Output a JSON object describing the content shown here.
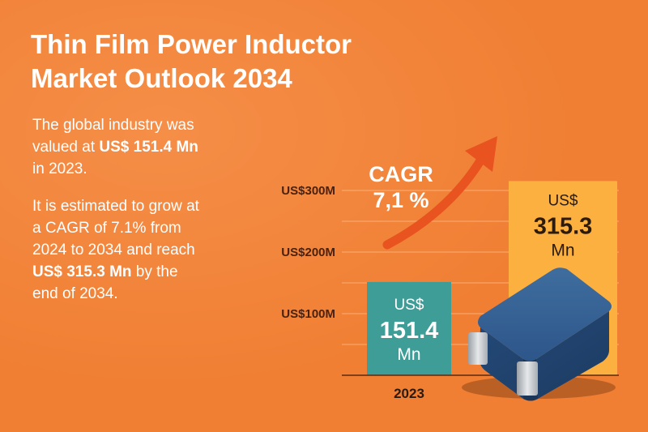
{
  "title_line1": "Thin Film Power Inductor",
  "title_line2": "Market Outlook 2034",
  "desc1": {
    "t1": "The global industry was",
    "t2": "valued at ",
    "t3": "US$ 151.4 Mn",
    "t4": "in 2023."
  },
  "desc2": {
    "t1": "It is estimated to grow at",
    "t2": "a CAGR of 7.1% from",
    "t3": "2024 to 2034 and reach",
    "t4": "US$ 315.3 Mn",
    "t5": " by the",
    "t6": "end of 2034."
  },
  "cagr": {
    "line1": "CAGR",
    "line2": "7,1 %"
  },
  "colors": {
    "bar_2023": "#3f9d98",
    "bar_2034": "#fbb040",
    "arrow": "#e8531f",
    "inductor": "#2f5a8a",
    "background": "#f07f33"
  },
  "icons": {
    "component": "inductor-icon",
    "growth": "growth-arrow-icon"
  },
  "chart_data": {
    "type": "bar",
    "categories": [
      "2023",
      ""
    ],
    "values": [
      151.4,
      315.3
    ],
    "value_labels": [
      {
        "prefix": "US$",
        "number": "151.4",
        "unit": "Mn"
      },
      {
        "prefix": "US$",
        "number": "315.3",
        "unit": "Mn"
      }
    ],
    "yticks": [
      100,
      200,
      300
    ],
    "ytick_labels": [
      "US$100M",
      "US$200M",
      "US$300M"
    ],
    "ylim": [
      0,
      350
    ],
    "grid": true,
    "title": "",
    "xlabel": "",
    "ylabel": ""
  }
}
